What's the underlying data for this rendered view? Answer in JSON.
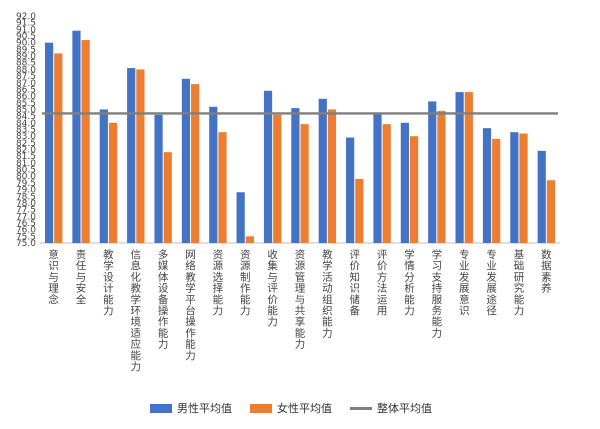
{
  "chart_data": {
    "type": "bar",
    "title": "",
    "xlabel": "",
    "ylabel": "",
    "ylim": [
      75.0,
      92.0
    ],
    "ytick_step": 0.5,
    "grid": false,
    "legend_position": "bottom",
    "categories": [
      "意识与理念",
      "责任与安全",
      "教学设计能力",
      "信息化教学环境适应能力",
      "多媒体设备操作能力",
      "网络教学平台操作能力",
      "资源选择能力",
      "资源制作能力",
      "收集与评价能力",
      "资源管理与共享能力",
      "教学活动组织能力",
      "评价知识储备",
      "评价方法运用",
      "学情分析能力",
      "学习支持服务能力",
      "专业发展意识",
      "专业发展途径",
      "基础研究能力",
      "数据素养"
    ],
    "series": [
      {
        "name": "男性平均值",
        "type": "bar",
        "color": "#4472C4",
        "values": [
          90.0,
          90.9,
          85.0,
          88.1,
          84.6,
          87.3,
          85.2,
          78.8,
          86.4,
          85.1,
          85.8,
          82.9,
          84.7,
          84.0,
          85.6,
          86.3,
          83.6,
          83.3,
          81.9
        ]
      },
      {
        "name": "女性平均值",
        "type": "bar",
        "color": "#ED7D31",
        "values": [
          89.2,
          90.2,
          84.0,
          88.0,
          81.8,
          86.9,
          83.3,
          75.5,
          84.6,
          83.9,
          85.0,
          79.8,
          83.9,
          83.0,
          84.9,
          86.3,
          82.8,
          83.2,
          79.7
        ]
      },
      {
        "name": "整体平均值",
        "type": "line",
        "color": "#7F7F7F",
        "value": 84.7
      }
    ]
  }
}
